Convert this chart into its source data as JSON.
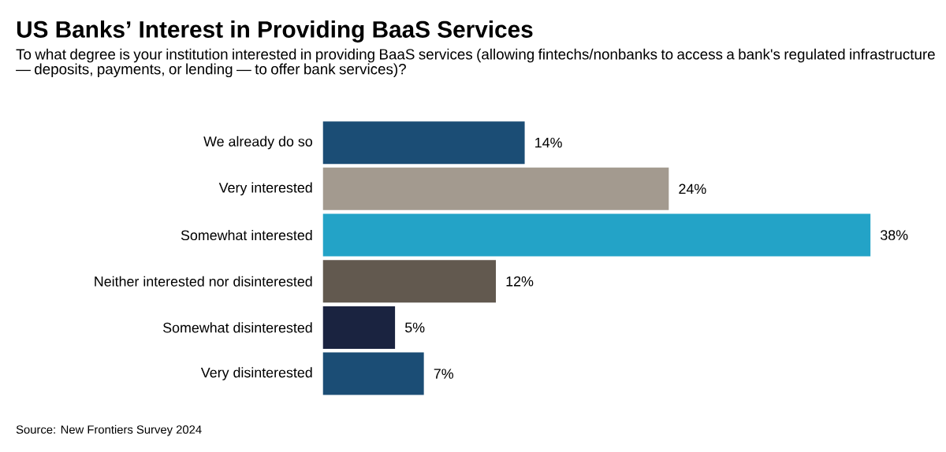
{
  "chart_data": {
    "type": "bar",
    "orientation": "horizontal",
    "title": "US Banks’ Interest in Providing BaaS Services",
    "subtitle": "To what degree is your institution interested in providing BaaS services (allowing fintechs/nonbanks to access a bank's regulated infrastructure — deposits, payments, or lending — to offer bank services)?",
    "categories": [
      "We already do so",
      "Very interested",
      "Somewhat interested",
      "Neither interested nor disinterested",
      "Somewhat disinterested",
      "Very disinterested"
    ],
    "values": [
      14,
      24,
      38,
      12,
      5,
      7
    ],
    "value_labels": [
      "14%",
      "24%",
      "38%",
      "12%",
      "5%",
      "7%"
    ],
    "colors": [
      "#1b4d75",
      "#a39a8f",
      "#23a3c7",
      "#62594f",
      "#1a2340",
      "#1b4d75"
    ],
    "annotations": [
      "Source: New Frontiers Survey 2024"
    ]
  }
}
